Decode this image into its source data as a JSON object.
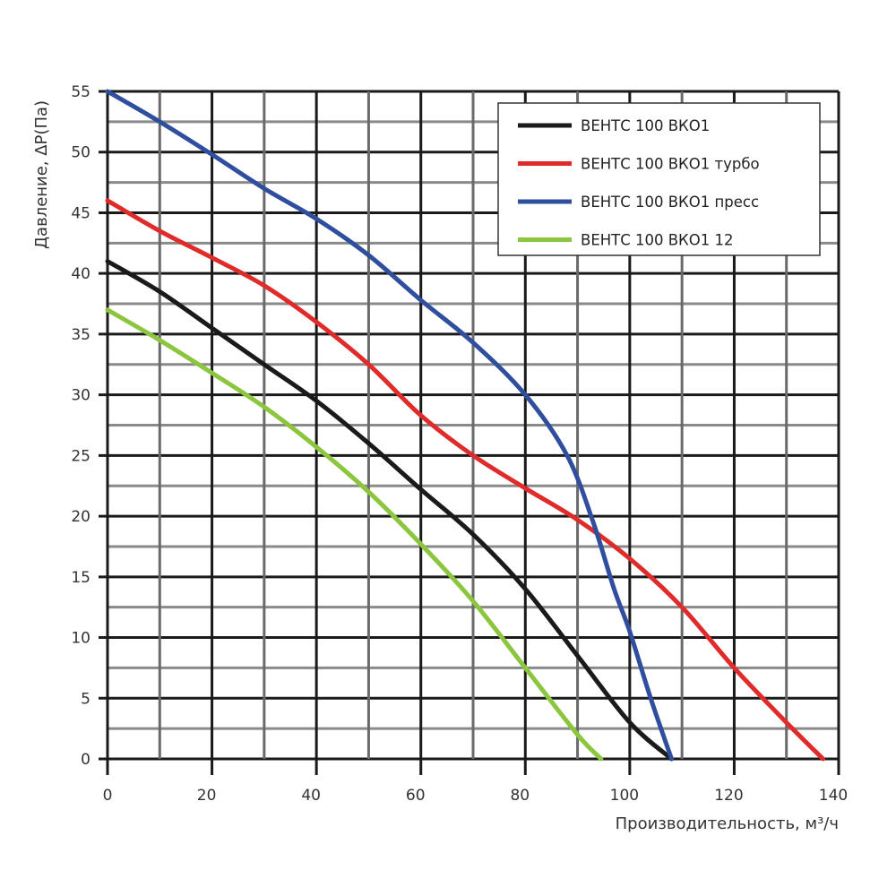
{
  "chart_data": {
    "type": "line",
    "xlabel": "Производительность, м³/ч",
    "ylabel": "Давление, ΔP(Па)",
    "xlim": [
      0,
      140
    ],
    "ylim": [
      0,
      55
    ],
    "xticks": [
      "0",
      "20",
      "40",
      "60",
      "80",
      "100",
      "120",
      "140"
    ],
    "yticks": [
      "0",
      "5",
      "10",
      "15",
      "20",
      "25",
      "30",
      "35",
      "40",
      "45",
      "50",
      "55"
    ],
    "grid": true,
    "legend_position": "top-right",
    "series": [
      {
        "name": "ВЕНТС 100 ВКО1",
        "color": "#1a1a1a",
        "points": [
          [
            0,
            41
          ],
          [
            10,
            38.5
          ],
          [
            20,
            35.5
          ],
          [
            30,
            32.5
          ],
          [
            40,
            29.5
          ],
          [
            50,
            26
          ],
          [
            60,
            22.2
          ],
          [
            70,
            18.5
          ],
          [
            80,
            14
          ],
          [
            90,
            8.5
          ],
          [
            100,
            3
          ],
          [
            108,
            0
          ]
        ]
      },
      {
        "name": "ВЕНТС 100 ВКО1 турбо",
        "color": "#e02b2b",
        "points": [
          [
            0,
            46
          ],
          [
            10,
            43.5
          ],
          [
            20,
            41.3
          ],
          [
            30,
            39
          ],
          [
            40,
            36
          ],
          [
            50,
            32.5
          ],
          [
            60,
            28.3
          ],
          [
            70,
            25
          ],
          [
            80,
            22.3
          ],
          [
            90,
            19.7
          ],
          [
            100,
            16.5
          ],
          [
            110,
            12.5
          ],
          [
            120,
            7.5
          ],
          [
            130,
            3
          ],
          [
            137,
            0
          ]
        ]
      },
      {
        "name": "ВЕНТС 100 ВКО1 пресс",
        "color": "#2f4f9e",
        "points": [
          [
            0,
            55
          ],
          [
            10,
            52.5
          ],
          [
            20,
            49.8
          ],
          [
            30,
            47
          ],
          [
            40,
            44.5
          ],
          [
            50,
            41.5
          ],
          [
            60,
            37.8
          ],
          [
            70,
            34.3
          ],
          [
            80,
            30
          ],
          [
            88,
            25
          ],
          [
            93,
            19.5
          ],
          [
            97,
            14
          ],
          [
            100,
            10.5
          ],
          [
            104,
            5
          ],
          [
            108,
            0
          ]
        ]
      },
      {
        "name": "ВЕНТС 100 ВКО1 12",
        "color": "#8cc63f",
        "points": [
          [
            0,
            37
          ],
          [
            10,
            34.5
          ],
          [
            20,
            31.8
          ],
          [
            30,
            29
          ],
          [
            40,
            25.7
          ],
          [
            50,
            22
          ],
          [
            60,
            17.7
          ],
          [
            70,
            13
          ],
          [
            80,
            7.5
          ],
          [
            90,
            2
          ],
          [
            94.5,
            0
          ]
        ]
      }
    ]
  }
}
